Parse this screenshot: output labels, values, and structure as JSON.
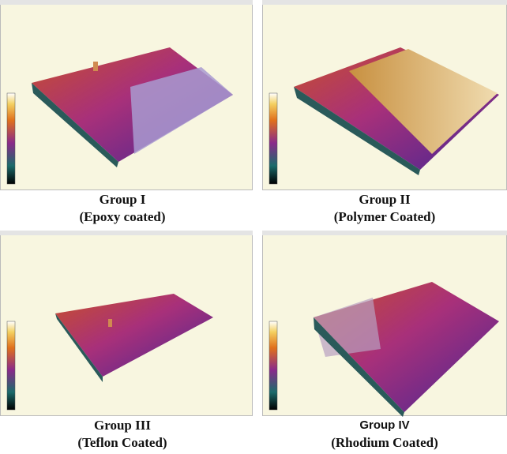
{
  "panels": [
    {
      "title": "Group I",
      "subtitle": "(Epoxy coated)"
    },
    {
      "title": "Group II",
      "subtitle": "(Polymer Coated)"
    },
    {
      "title": "Group III",
      "subtitle": "(Teflon Coated)"
    },
    {
      "title": "Group IV",
      "subtitle": "(Rhodium Coated)"
    }
  ]
}
